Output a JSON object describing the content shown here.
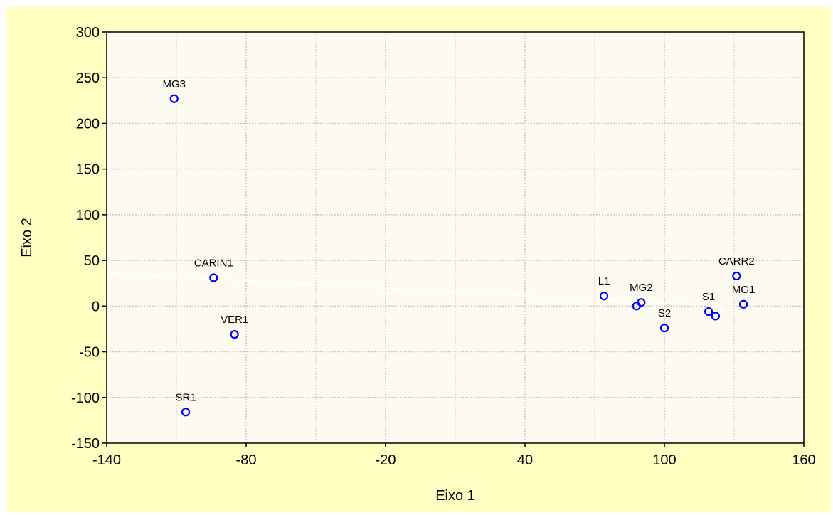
{
  "chart_data": {
    "type": "scatter",
    "title": "",
    "xlabel": "Eixo 1",
    "ylabel": "Eixo 2",
    "xlim": [
      -140,
      160
    ],
    "ylim": [
      -150,
      300
    ],
    "x_ticks": [
      -140,
      -80,
      -20,
      40,
      100,
      160
    ],
    "y_ticks": [
      -150,
      -100,
      -50,
      0,
      50,
      100,
      150,
      200,
      250,
      300
    ],
    "grid": true,
    "points": [
      {
        "label": "MG3",
        "x": -111,
        "y": 227
      },
      {
        "label": "CARIN1",
        "x": -94,
        "y": 31
      },
      {
        "label": "VER1",
        "x": -85,
        "y": -31
      },
      {
        "label": "SR1",
        "x": -106,
        "y": -116
      },
      {
        "label": "L1",
        "x": 74,
        "y": 11
      },
      {
        "label": "",
        "x": 88,
        "y": 0
      },
      {
        "label": "MG2",
        "x": 90,
        "y": 4
      },
      {
        "label": "S2",
        "x": 100,
        "y": -24
      },
      {
        "label": "S1",
        "x": 119,
        "y": -6
      },
      {
        "label": "",
        "x": 122,
        "y": -11
      },
      {
        "label": "CARR2",
        "x": 131,
        "y": 33
      },
      {
        "label": "MG1",
        "x": 134,
        "y": 2
      }
    ],
    "trend_line": {
      "x": [
        -140,
        160
      ],
      "y": [
        36,
        -5
      ]
    },
    "colors": {
      "marker": "#0000ff",
      "plot_bg": "#fdfaf0",
      "frame_bg": "#ffffc2",
      "grid": "#c8c8c8",
      "trend": "#ffffff"
    }
  }
}
